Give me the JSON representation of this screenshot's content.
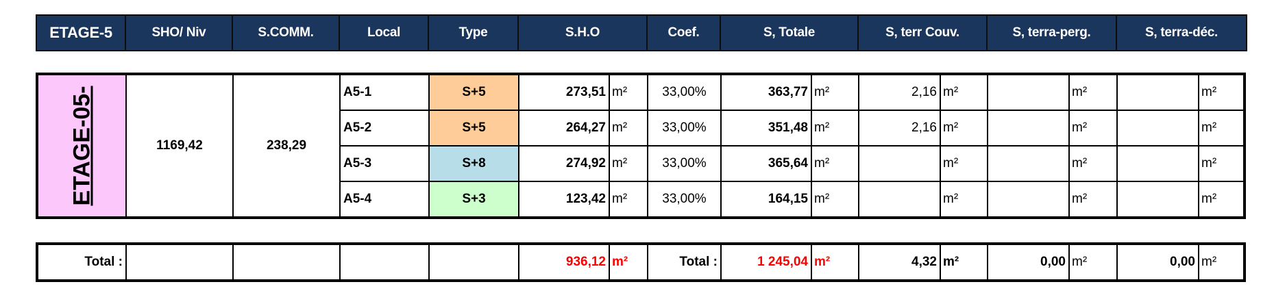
{
  "header": [
    "ETAGE-5",
    "SHO/ Niv",
    "S.COMM.",
    "Local",
    "Type",
    "S.H.O",
    "Coef.",
    "S, Totale",
    "S, terr Couv.",
    "S, terra-perg.",
    "S, terra-déc."
  ],
  "block": {
    "label": "ETAGE-05-",
    "sho_niv": "1169,42",
    "s_comm": "238,29"
  },
  "unit": "m²",
  "type_colors": {
    "S+5": "#fecc99",
    "S+8": "#b7dde8",
    "S+3": "#ccffcc"
  },
  "rows": [
    {
      "local": "A5-1",
      "type": "S+5",
      "sho": "273,51",
      "coef": "33,00%",
      "total": "363,77",
      "couv": "2,16",
      "perg": "",
      "dec": ""
    },
    {
      "local": "A5-2",
      "type": "S+5",
      "sho": "264,27",
      "coef": "33,00%",
      "total": "351,48",
      "couv": "2,16",
      "perg": "",
      "dec": ""
    },
    {
      "local": "A5-3",
      "type": "S+8",
      "sho": "274,92",
      "coef": "33,00%",
      "total": "365,64",
      "couv": "",
      "perg": "",
      "dec": ""
    },
    {
      "local": "A5-4",
      "type": "S+3",
      "sho": "123,42",
      "coef": "33,00%",
      "total": "164,15",
      "couv": "",
      "perg": "",
      "dec": ""
    }
  ],
  "totals": {
    "label": "Total :",
    "sho": "936,12",
    "label2": "Total :",
    "total": "1 245,04",
    "couv": "4,32",
    "perg": "0,00",
    "dec": "0,00"
  }
}
